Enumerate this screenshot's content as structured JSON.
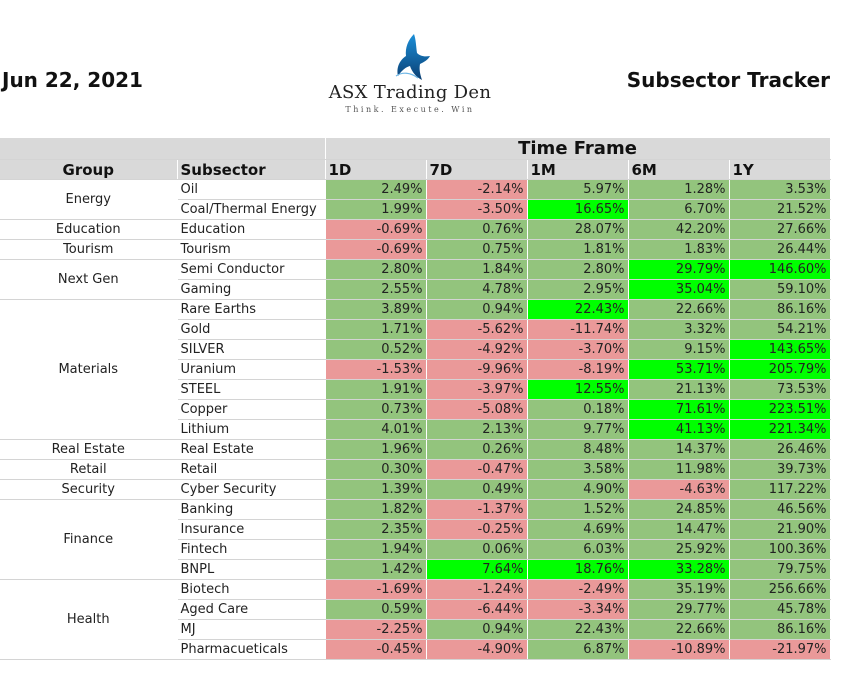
{
  "header": {
    "date": "Jun 22, 2021",
    "title": "Subsector Tracker"
  },
  "logo": {
    "name": "ASX Trading Den",
    "tagline": "Think. Execute. Win"
  },
  "table": {
    "super_header": "Time Frame",
    "columns": [
      "Group",
      "Subsector",
      "1D",
      "7D",
      "1M",
      "6M",
      "1Y"
    ],
    "rows": [
      {
        "group": "Energy",
        "span": 2,
        "subsector": "Oil",
        "values": [
          "2.49%",
          "-2.14%",
          "5.97%",
          "1.28%",
          "3.53%"
        ],
        "styles": [
          "pos",
          "neg",
          "pos",
          "pos",
          "pos"
        ]
      },
      {
        "subsector": "Coal/Thermal Energy",
        "values": [
          "1.99%",
          "-3.50%",
          "16.65%",
          "6.70%",
          "21.52%"
        ],
        "styles": [
          "pos",
          "neg",
          "hi",
          "pos",
          "pos"
        ]
      },
      {
        "group": "Education",
        "span": 1,
        "subsector": "Education",
        "values": [
          "-0.69%",
          "0.76%",
          "28.07%",
          "42.20%",
          "27.66%"
        ],
        "styles": [
          "neg",
          "pos",
          "pos",
          "pos",
          "pos"
        ]
      },
      {
        "group": "Tourism",
        "span": 1,
        "subsector": "Tourism",
        "values": [
          "-0.69%",
          "0.75%",
          "1.81%",
          "1.83%",
          "26.44%"
        ],
        "styles": [
          "neg",
          "pos",
          "pos",
          "pos",
          "pos"
        ]
      },
      {
        "group": "Next Gen",
        "span": 2,
        "subsector": "Semi Conductor",
        "values": [
          "2.80%",
          "1.84%",
          "2.80%",
          "29.79%",
          "146.60%"
        ],
        "styles": [
          "pos",
          "pos",
          "pos",
          "hi",
          "hi"
        ]
      },
      {
        "subsector": "Gaming",
        "values": [
          "2.55%",
          "4.78%",
          "2.95%",
          "35.04%",
          "59.10%"
        ],
        "styles": [
          "pos",
          "pos",
          "pos",
          "hi",
          "pos"
        ]
      },
      {
        "group": "Materials",
        "span": 7,
        "subsector": "Rare Earths",
        "values": [
          "3.89%",
          "0.94%",
          "22.43%",
          "22.66%",
          "86.16%"
        ],
        "styles": [
          "pos",
          "pos",
          "hi",
          "pos",
          "pos"
        ]
      },
      {
        "subsector": "Gold",
        "values": [
          "1.71%",
          "-5.62%",
          "-11.74%",
          "3.32%",
          "54.21%"
        ],
        "styles": [
          "pos",
          "neg",
          "neg",
          "pos",
          "pos"
        ]
      },
      {
        "subsector": "SILVER",
        "values": [
          "0.52%",
          "-4.92%",
          "-3.70%",
          "9.15%",
          "143.65%"
        ],
        "styles": [
          "pos",
          "neg",
          "neg",
          "pos",
          "hi"
        ]
      },
      {
        "subsector": "Uranium",
        "values": [
          "-1.53%",
          "-9.96%",
          "-8.19%",
          "53.71%",
          "205.79%"
        ],
        "styles": [
          "neg",
          "neg",
          "neg",
          "hi",
          "hi"
        ]
      },
      {
        "subsector": "STEEL",
        "values": [
          "1.91%",
          "-3.97%",
          "12.55%",
          "21.13%",
          "73.53%"
        ],
        "styles": [
          "pos",
          "neg",
          "hi",
          "pos",
          "pos"
        ]
      },
      {
        "subsector": "Copper",
        "values": [
          "0.73%",
          "-5.08%",
          "0.18%",
          "71.61%",
          "223.51%"
        ],
        "styles": [
          "pos",
          "neg",
          "pos",
          "hi",
          "hi"
        ]
      },
      {
        "subsector": "Lithium",
        "values": [
          "4.01%",
          "2.13%",
          "9.77%",
          "41.13%",
          "221.34%"
        ],
        "styles": [
          "pos",
          "pos",
          "pos",
          "hi",
          "hi"
        ]
      },
      {
        "group": "Real Estate",
        "span": 1,
        "subsector": "Real Estate",
        "values": [
          "1.96%",
          "0.26%",
          "8.48%",
          "14.37%",
          "26.46%"
        ],
        "styles": [
          "pos",
          "pos",
          "pos",
          "pos",
          "pos"
        ]
      },
      {
        "group": "Retail",
        "span": 1,
        "subsector": "Retail",
        "values": [
          "0.30%",
          "-0.47%",
          "3.58%",
          "11.98%",
          "39.73%"
        ],
        "styles": [
          "pos",
          "neg",
          "pos",
          "pos",
          "pos"
        ]
      },
      {
        "group": "Security",
        "span": 1,
        "subsector": "Cyber Security",
        "values": [
          "1.39%",
          "0.49%",
          "4.90%",
          "-4.63%",
          "117.22%"
        ],
        "styles": [
          "pos",
          "pos",
          "pos",
          "neg",
          "pos"
        ]
      },
      {
        "group": "Finance",
        "span": 4,
        "subsector": "Banking",
        "values": [
          "1.82%",
          "-1.37%",
          "1.52%",
          "24.85%",
          "46.56%"
        ],
        "styles": [
          "pos",
          "neg",
          "pos",
          "pos",
          "pos"
        ]
      },
      {
        "subsector": "Insurance",
        "values": [
          "2.35%",
          "-0.25%",
          "4.69%",
          "14.47%",
          "21.90%"
        ],
        "styles": [
          "pos",
          "neg",
          "pos",
          "pos",
          "pos"
        ]
      },
      {
        "subsector": "Fintech",
        "values": [
          "1.94%",
          "0.06%",
          "6.03%",
          "25.92%",
          "100.36%"
        ],
        "styles": [
          "pos",
          "pos",
          "pos",
          "pos",
          "pos"
        ]
      },
      {
        "subsector": "BNPL",
        "values": [
          "1.42%",
          "7.64%",
          "18.76%",
          "33.28%",
          "79.75%"
        ],
        "styles": [
          "pos",
          "hi",
          "hi",
          "hi",
          "pos"
        ]
      },
      {
        "group": "Health",
        "span": 4,
        "subsector": "Biotech",
        "values": [
          "-1.69%",
          "-1.24%",
          "-2.49%",
          "35.19%",
          "256.66%"
        ],
        "styles": [
          "neg",
          "neg",
          "neg",
          "pos",
          "pos"
        ]
      },
      {
        "subsector": "Aged Care",
        "values": [
          "0.59%",
          "-6.44%",
          "-3.34%",
          "29.77%",
          "45.78%"
        ],
        "styles": [
          "pos",
          "neg",
          "neg",
          "pos",
          "pos"
        ]
      },
      {
        "subsector": "MJ",
        "values": [
          "-2.25%",
          "0.94%",
          "22.43%",
          "22.66%",
          "86.16%"
        ],
        "styles": [
          "neg",
          "pos",
          "pos",
          "pos",
          "pos"
        ]
      },
      {
        "subsector": "Pharmacueticals",
        "values": [
          "-0.45%",
          "-4.90%",
          "6.87%",
          "-10.89%",
          "-21.97%"
        ],
        "styles": [
          "neg",
          "neg",
          "pos",
          "neg",
          "neg"
        ]
      }
    ]
  }
}
